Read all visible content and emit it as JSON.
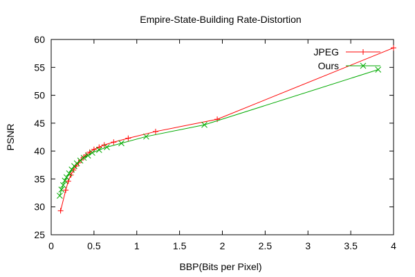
{
  "chart_data": {
    "type": "line",
    "title": "Empire-State-Building Rate-Distortion",
    "xlabel": "BBP(Bits per Pixel)",
    "ylabel": "PSNR",
    "xlim": [
      0,
      4
    ],
    "ylim": [
      25,
      60
    ],
    "x_ticks": [
      "0",
      "0.5",
      "1",
      "1.5",
      "2",
      "2.5",
      "3",
      "3.5",
      "4"
    ],
    "y_ticks": [
      "25",
      "30",
      "35",
      "40",
      "45",
      "50",
      "55",
      "60"
    ],
    "grid": false,
    "legend_position": "top-right",
    "series": [
      {
        "name": "JPEG",
        "color": "#ff0000",
        "marker": "plus",
        "x": [
          0.11,
          0.17,
          0.2,
          0.23,
          0.26,
          0.29,
          0.32,
          0.35,
          0.38,
          0.41,
          0.45,
          0.5,
          0.56,
          0.62,
          0.73,
          0.9,
          1.22,
          1.94,
          4.0
        ],
        "y": [
          29.3,
          33.0,
          34.6,
          35.7,
          36.6,
          37.3,
          37.9,
          38.4,
          38.9,
          39.3,
          39.8,
          40.3,
          40.7,
          41.1,
          41.6,
          42.3,
          43.5,
          45.7,
          58.5
        ]
      },
      {
        "name": "Ours",
        "color": "#00aa00",
        "marker": "x",
        "x": [
          0.1,
          0.12,
          0.14,
          0.16,
          0.18,
          0.21,
          0.24,
          0.27,
          0.3,
          0.34,
          0.38,
          0.43,
          0.48,
          0.56,
          0.65,
          0.82,
          1.11,
          1.79,
          3.82
        ],
        "y": [
          32.0,
          33.1,
          33.9,
          34.7,
          35.3,
          36.0,
          36.7,
          37.3,
          37.8,
          38.3,
          38.8,
          39.2,
          39.7,
          40.2,
          40.7,
          41.4,
          42.6,
          44.7,
          54.6
        ]
      }
    ]
  }
}
